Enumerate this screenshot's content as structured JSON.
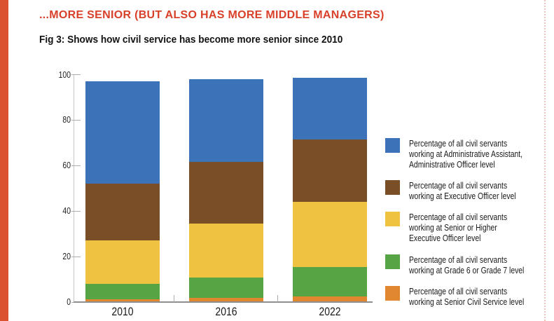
{
  "header": {
    "headline": "...MORE SENIOR (BUT ALSO HAS MORE MIDDLE MANAGERS)",
    "subtitle": "Fig 3: Shows how civil service has become more senior since 2010"
  },
  "colors": {
    "headline_red": "#D8402A",
    "left_stripe": "#DB5230",
    "dotted_border": "#F0C6BA"
  },
  "chart_data": {
    "type": "bar",
    "subtype": "stacked",
    "title": "Fig 3: Shows how civil service has become more senior since 2010",
    "categories": [
      "2010",
      "2016",
      "2022"
    ],
    "series": [
      {
        "name": "Senior Civil Service",
        "color": "#E1872F",
        "values": [
          1.2,
          1.7,
          2.5
        ],
        "legend_lines": [
          "Percentage of all civil servants",
          "working at Senior Civil Service level"
        ]
      },
      {
        "name": "Grade 6 or Grade 7",
        "color": "#57A445",
        "values": [
          6.8,
          9.2,
          13.0
        ],
        "legend_lines": [
          "Percentage of all civil servants",
          "working at Grade 6 or Grade 7 level"
        ]
      },
      {
        "name": "Senior or Higher Executive Officer",
        "color": "#F0C241",
        "values": [
          19.2,
          23.7,
          28.6
        ],
        "legend_lines": [
          "Percentage of all civil servants",
          "working at Senior or Higher",
          "Executive Officer level"
        ]
      },
      {
        "name": "Executive Officer",
        "color": "#7A4E26",
        "values": [
          24.8,
          26.9,
          27.4
        ],
        "legend_lines": [
          "Percentage of all civil servants",
          "working at Executive Officer level"
        ]
      },
      {
        "name": "Administrative Assistant, Administrative Officer",
        "color": "#3B72B8",
        "values": [
          45.0,
          36.5,
          27.0
        ],
        "legend_lines": [
          "Percentage of all civil servants",
          "working at Administrative Assistant,",
          "Administrative Officer level"
        ]
      }
    ],
    "stack_order": "bottom-to-top",
    "legend_order": "top-to-bottom is reverse of stack (blue first)",
    "ylim": [
      0,
      100
    ],
    "yticks": [
      0,
      20,
      40,
      60,
      80,
      100
    ],
    "xlabel": "",
    "ylabel": "",
    "grid": false,
    "legend_position": "right"
  }
}
